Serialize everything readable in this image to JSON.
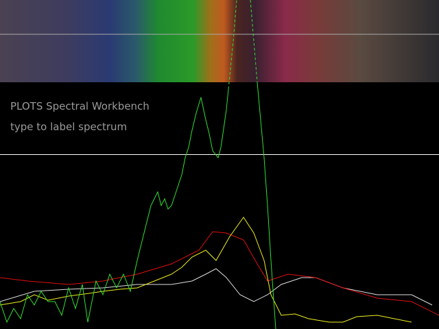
{
  "header": {
    "title": "PLOTS Spectral Workbench",
    "subtitle": "type to label spectrum"
  }
}
